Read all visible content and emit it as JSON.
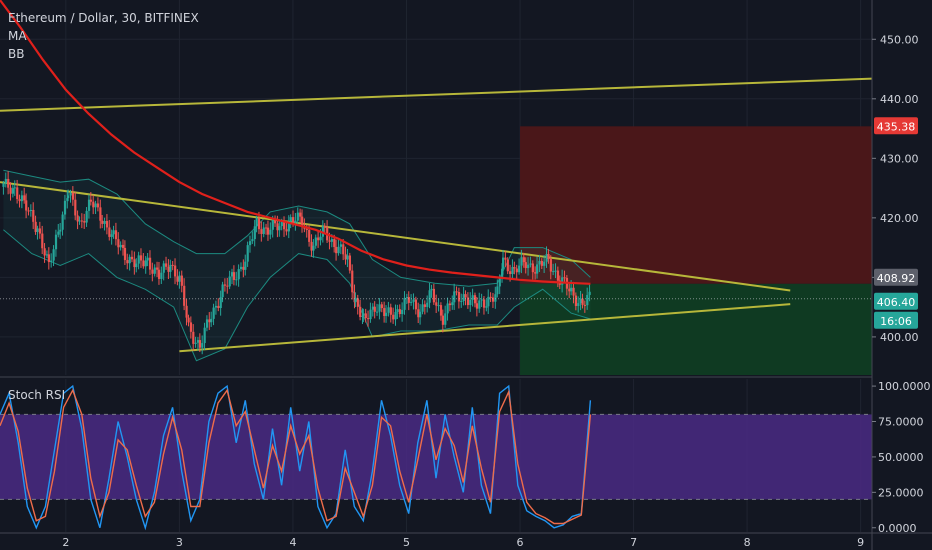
{
  "header": {
    "title": "Ethereum / Dollar, 30, BITFINEX",
    "indicators": [
      "MA",
      "BB"
    ]
  },
  "chart_data": [
    {
      "type": "candlestick",
      "symbol": "Ethereum / Dollar",
      "timeframe": "30",
      "exchange": "BITFINEX",
      "x_ticks": [
        "2",
        "3",
        "4",
        "5",
        "6",
        "7",
        "8",
        "9"
      ],
      "x_range": [
        1.42,
        9.1
      ],
      "y_ticks": [
        "450.00",
        "440.00",
        "430.00",
        "420.00",
        "410.00",
        "400.00"
      ],
      "y_range": [
        393.6,
        456.6
      ],
      "price_labels": [
        {
          "value": "435.38",
          "color": "#e53935"
        },
        {
          "value": "408.92",
          "color": "#5d606b"
        },
        {
          "value": "406.40",
          "color": "#26a69a"
        },
        {
          "value": "16:06",
          "color": "#26a69a"
        }
      ],
      "close_path": [
        [
          1.45,
          425.2
        ],
        [
          1.55,
          425.0
        ],
        [
          1.65,
          421.5
        ],
        [
          1.75,
          418.5
        ],
        [
          1.85,
          411.5
        ],
        [
          1.95,
          419.5
        ],
        [
          2.02,
          424.0
        ],
        [
          2.12,
          419.2
        ],
        [
          2.22,
          422.5
        ],
        [
          2.32,
          420.0
        ],
        [
          2.42,
          416.5
        ],
        [
          2.52,
          414.0
        ],
        [
          2.62,
          412.0
        ],
        [
          2.72,
          413.0
        ],
        [
          2.82,
          410.0
        ],
        [
          2.92,
          412.5
        ],
        [
          3.0,
          409.5
        ],
        [
          3.08,
          401.5
        ],
        [
          3.18,
          398.5
        ],
        [
          3.28,
          403.5
        ],
        [
          3.38,
          408.0
        ],
        [
          3.48,
          410.0
        ],
        [
          3.58,
          413.0
        ],
        [
          3.68,
          419.0
        ],
        [
          3.78,
          418.0
        ],
        [
          3.88,
          418.5
        ],
        [
          3.98,
          419.5
        ],
        [
          4.08,
          419.5
        ],
        [
          4.18,
          415.0
        ],
        [
          4.28,
          418.0
        ],
        [
          4.38,
          415.0
        ],
        [
          4.48,
          413.0
        ],
        [
          4.55,
          406.0
        ],
        [
          4.62,
          402.5
        ],
        [
          4.72,
          405.5
        ],
        [
          4.82,
          403.5
        ],
        [
          4.92,
          404.5
        ],
        [
          5.02,
          406.0
        ],
        [
          5.12,
          404.5
        ],
        [
          5.22,
          407.0
        ],
        [
          5.32,
          403.5
        ],
        [
          5.42,
          406.5
        ],
        [
          5.52,
          407.0
        ],
        [
          5.62,
          405.0
        ],
        [
          5.72,
          406.5
        ],
        [
          5.8,
          407.0
        ],
        [
          5.85,
          413.0
        ],
        [
          5.95,
          411.0
        ],
        [
          6.05,
          412.5
        ],
        [
          6.15,
          411.5
        ],
        [
          6.25,
          413.0
        ],
        [
          6.35,
          409.5
        ],
        [
          6.45,
          407.5
        ],
        [
          6.55,
          405.5
        ],
        [
          6.62,
          406.4
        ]
      ],
      "ma_path": [
        [
          1.42,
          456.6
        ],
        [
          1.6,
          452.0
        ],
        [
          1.8,
          446.5
        ],
        [
          2.0,
          441.5
        ],
        [
          2.2,
          437.5
        ],
        [
          2.4,
          434.0
        ],
        [
          2.6,
          431.0
        ],
        [
          2.8,
          428.5
        ],
        [
          3.0,
          426.0
        ],
        [
          3.2,
          424.0
        ],
        [
          3.4,
          422.5
        ],
        [
          3.6,
          421.0
        ],
        [
          3.8,
          420.0
        ],
        [
          4.0,
          419.0
        ],
        [
          4.2,
          418.0
        ],
        [
          4.4,
          416.5
        ],
        [
          4.6,
          414.5
        ],
        [
          4.8,
          413.0
        ],
        [
          5.0,
          412.0
        ],
        [
          5.2,
          411.3
        ],
        [
          5.4,
          410.8
        ],
        [
          5.6,
          410.4
        ],
        [
          5.8,
          410.0
        ],
        [
          6.0,
          409.6
        ],
        [
          6.2,
          409.3
        ],
        [
          6.4,
          409.1
        ],
        [
          6.62,
          408.92
        ]
      ],
      "bb_upper": [
        [
          1.45,
          428
        ],
        [
          1.7,
          427
        ],
        [
          1.95,
          426
        ],
        [
          2.2,
          426.5
        ],
        [
          2.45,
          424
        ],
        [
          2.7,
          419
        ],
        [
          2.95,
          416
        ],
        [
          3.15,
          414
        ],
        [
          3.4,
          414
        ],
        [
          3.6,
          417
        ],
        [
          3.8,
          421
        ],
        [
          4.05,
          422
        ],
        [
          4.3,
          421
        ],
        [
          4.5,
          419
        ],
        [
          4.7,
          413
        ],
        [
          4.95,
          410
        ],
        [
          5.25,
          409
        ],
        [
          5.55,
          408.5
        ],
        [
          5.8,
          409
        ],
        [
          5.95,
          415
        ],
        [
          6.2,
          415
        ],
        [
          6.45,
          413
        ],
        [
          6.62,
          410
        ]
      ],
      "bb_lower": [
        [
          1.45,
          418
        ],
        [
          1.7,
          414
        ],
        [
          1.95,
          412
        ],
        [
          2.2,
          414
        ],
        [
          2.45,
          410
        ],
        [
          2.7,
          408
        ],
        [
          2.95,
          405
        ],
        [
          3.15,
          396
        ],
        [
          3.4,
          398
        ],
        [
          3.6,
          405
        ],
        [
          3.8,
          410
        ],
        [
          4.05,
          414
        ],
        [
          4.3,
          413
        ],
        [
          4.5,
          409
        ],
        [
          4.7,
          400
        ],
        [
          4.95,
          401
        ],
        [
          5.25,
          401
        ],
        [
          5.55,
          402
        ],
        [
          5.8,
          402
        ],
        [
          5.95,
          405
        ],
        [
          6.2,
          408
        ],
        [
          6.45,
          404
        ],
        [
          6.62,
          403
        ]
      ],
      "trendlines": [
        {
          "name": "upper-channel",
          "color": "#b7b73a",
          "points": [
            [
              1.42,
              438.0
            ],
            [
              9.1,
              443.4
            ]
          ]
        },
        {
          "name": "descending-resistance",
          "color": "#b7b73a",
          "points": [
            [
              1.42,
              426.0
            ],
            [
              8.38,
              407.8
            ]
          ]
        },
        {
          "name": "ascending-support",
          "color": "#b7b73a",
          "points": [
            [
              3.0,
              397.6
            ],
            [
              8.38,
              405.5
            ]
          ]
        }
      ],
      "position": {
        "x_start": 6.0,
        "x_end": 9.1,
        "entry": 408.92,
        "stop": 435.38,
        "target": 393.6,
        "stop_color": "#4a1719",
        "target_color": "#0f3a22"
      }
    },
    {
      "type": "line",
      "title": "Stoch RSI",
      "y_ticks": [
        "100.0000",
        "75.0000",
        "50.0000",
        "25.0000",
        "0.0000"
      ],
      "ylim": [
        -3,
        105
      ],
      "band": [
        20,
        80
      ],
      "band_color": "#4a2a84",
      "series": [
        {
          "color": "#2196f3",
          "points": [
            [
              1.42,
              80
            ],
            [
              1.5,
              95
            ],
            [
              1.58,
              60
            ],
            [
              1.66,
              15
            ],
            [
              1.74,
              0
            ],
            [
              1.82,
              15
            ],
            [
              1.9,
              55
            ],
            [
              1.98,
              95
            ],
            [
              2.06,
              100
            ],
            [
              2.14,
              70
            ],
            [
              2.22,
              20
            ],
            [
              2.3,
              0
            ],
            [
              2.38,
              35
            ],
            [
              2.46,
              75
            ],
            [
              2.54,
              50
            ],
            [
              2.62,
              20
            ],
            [
              2.7,
              0
            ],
            [
              2.78,
              25
            ],
            [
              2.86,
              65
            ],
            [
              2.94,
              85
            ],
            [
              3.02,
              40
            ],
            [
              3.1,
              5
            ],
            [
              3.18,
              20
            ],
            [
              3.26,
              75
            ],
            [
              3.34,
              95
            ],
            [
              3.42,
              100
            ],
            [
              3.5,
              60
            ],
            [
              3.58,
              90
            ],
            [
              3.66,
              45
            ],
            [
              3.74,
              20
            ],
            [
              3.82,
              70
            ],
            [
              3.9,
              30
            ],
            [
              3.98,
              85
            ],
            [
              4.06,
              40
            ],
            [
              4.14,
              75
            ],
            [
              4.22,
              15
            ],
            [
              4.3,
              0
            ],
            [
              4.38,
              10
            ],
            [
              4.46,
              55
            ],
            [
              4.54,
              15
            ],
            [
              4.62,
              5
            ],
            [
              4.7,
              40
            ],
            [
              4.78,
              90
            ],
            [
              4.86,
              65
            ],
            [
              4.94,
              30
            ],
            [
              5.02,
              10
            ],
            [
              5.1,
              60
            ],
            [
              5.18,
              90
            ],
            [
              5.26,
              35
            ],
            [
              5.34,
              80
            ],
            [
              5.42,
              50
            ],
            [
              5.5,
              25
            ],
            [
              5.58,
              85
            ],
            [
              5.66,
              30
            ],
            [
              5.74,
              10
            ],
            [
              5.82,
              95
            ],
            [
              5.9,
              100
            ],
            [
              5.98,
              30
            ],
            [
              6.06,
              12
            ],
            [
              6.14,
              8
            ],
            [
              6.22,
              5
            ],
            [
              6.3,
              0
            ],
            [
              6.38,
              2
            ],
            [
              6.46,
              8
            ],
            [
              6.54,
              10
            ],
            [
              6.62,
              90
            ]
          ]
        },
        {
          "color": "#ef6c4a",
          "points": [
            [
              1.42,
              72
            ],
            [
              1.5,
              88
            ],
            [
              1.58,
              68
            ],
            [
              1.66,
              28
            ],
            [
              1.74,
              5
            ],
            [
              1.82,
              8
            ],
            [
              1.9,
              40
            ],
            [
              1.98,
              85
            ],
            [
              2.06,
              97
            ],
            [
              2.14,
              80
            ],
            [
              2.22,
              35
            ],
            [
              2.3,
              8
            ],
            [
              2.38,
              25
            ],
            [
              2.46,
              62
            ],
            [
              2.54,
              55
            ],
            [
              2.62,
              30
            ],
            [
              2.7,
              8
            ],
            [
              2.78,
              18
            ],
            [
              2.86,
              52
            ],
            [
              2.94,
              78
            ],
            [
              3.02,
              55
            ],
            [
              3.1,
              15
            ],
            [
              3.18,
              15
            ],
            [
              3.26,
              60
            ],
            [
              3.34,
              88
            ],
            [
              3.42,
              97
            ],
            [
              3.5,
              72
            ],
            [
              3.58,
              82
            ],
            [
              3.66,
              55
            ],
            [
              3.74,
              28
            ],
            [
              3.82,
              58
            ],
            [
              3.9,
              40
            ],
            [
              3.98,
              72
            ],
            [
              4.06,
              52
            ],
            [
              4.14,
              65
            ],
            [
              4.22,
              28
            ],
            [
              4.3,
              5
            ],
            [
              4.38,
              8
            ],
            [
              4.46,
              42
            ],
            [
              4.54,
              25
            ],
            [
              4.62,
              8
            ],
            [
              4.7,
              30
            ],
            [
              4.78,
              78
            ],
            [
              4.86,
              72
            ],
            [
              4.94,
              40
            ],
            [
              5.02,
              18
            ],
            [
              5.1,
              48
            ],
            [
              5.18,
              80
            ],
            [
              5.26,
              48
            ],
            [
              5.34,
              70
            ],
            [
              5.42,
              58
            ],
            [
              5.5,
              32
            ],
            [
              5.58,
              72
            ],
            [
              5.66,
              42
            ],
            [
              5.74,
              18
            ],
            [
              5.82,
              82
            ],
            [
              5.9,
              96
            ],
            [
              5.98,
              45
            ],
            [
              6.06,
              18
            ],
            [
              6.14,
              10
            ],
            [
              6.22,
              7
            ],
            [
              6.3,
              3
            ],
            [
              6.38,
              3
            ],
            [
              6.46,
              6
            ],
            [
              6.54,
              9
            ],
            [
              6.62,
              80
            ]
          ]
        }
      ],
      "x_ticks": [
        "2",
        "3",
        "4",
        "5",
        "6",
        "7",
        "8",
        "9"
      ]
    }
  ]
}
